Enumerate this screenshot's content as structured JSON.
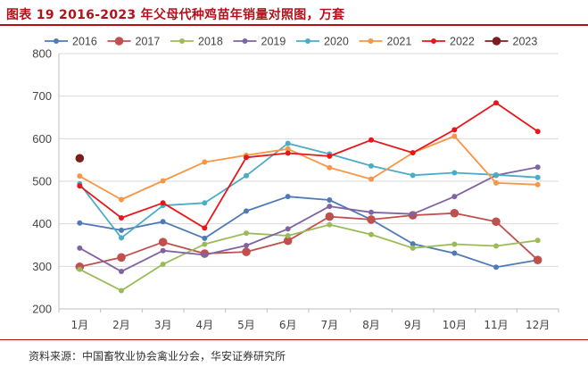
{
  "header": {
    "title": "图表 19 2016-2023 年父母代种鸡苗年销量对照图，万套"
  },
  "footer": {
    "source": "资料来源：中国畜牧业协会禽业分会，华安证券研究所"
  },
  "chart_data": {
    "type": "line",
    "title": "",
    "xlabel": "",
    "ylabel": "",
    "categories": [
      "1月",
      "2月",
      "3月",
      "4月",
      "5月",
      "6月",
      "7月",
      "8月",
      "9月",
      "10月",
      "11月",
      "12月"
    ],
    "ylim": [
      200,
      800
    ],
    "yticks": [
      200,
      300,
      400,
      500,
      600,
      700,
      800
    ],
    "grid": true,
    "legend_position": "top",
    "series": [
      {
        "name": "2016",
        "color": "#4e7ab5",
        "marker": "small",
        "values": [
          402,
          385,
          405,
          366,
          430,
          464,
          456,
          410,
          353,
          331,
          298,
          315
        ]
      },
      {
        "name": "2017",
        "color": "#c0504d",
        "marker": "large",
        "values": [
          299,
          321,
          357,
          330,
          334,
          360,
          417,
          410,
          420,
          425,
          405,
          315
        ]
      },
      {
        "name": "2018",
        "color": "#9bbb59",
        "marker": "small",
        "values": [
          293,
          243,
          305,
          352,
          378,
          372,
          398,
          375,
          343,
          352,
          348,
          361
        ]
      },
      {
        "name": "2019",
        "color": "#8064a2",
        "marker": "small",
        "values": [
          343,
          288,
          337,
          327,
          349,
          388,
          441,
          427,
          423,
          464,
          514,
          533
        ]
      },
      {
        "name": "2020",
        "color": "#4bacc6",
        "marker": "small",
        "values": [
          494,
          367,
          443,
          449,
          513,
          589,
          564,
          536,
          514,
          520,
          515,
          509
        ]
      },
      {
        "name": "2021",
        "color": "#f79646",
        "marker": "small",
        "values": [
          512,
          457,
          501,
          545,
          561,
          576,
          532,
          505,
          567,
          606,
          496,
          492
        ]
      },
      {
        "name": "2022",
        "color": "#e8161b",
        "marker": "small",
        "values": [
          489,
          414,
          449,
          390,
          556,
          566,
          559,
          597,
          567,
          621,
          684,
          617
        ]
      },
      {
        "name": "2023",
        "color": "#7b1f1d",
        "marker": "large",
        "values": [
          554,
          null,
          null,
          null,
          null,
          null,
          null,
          null,
          null,
          null,
          null,
          null
        ]
      }
    ]
  }
}
